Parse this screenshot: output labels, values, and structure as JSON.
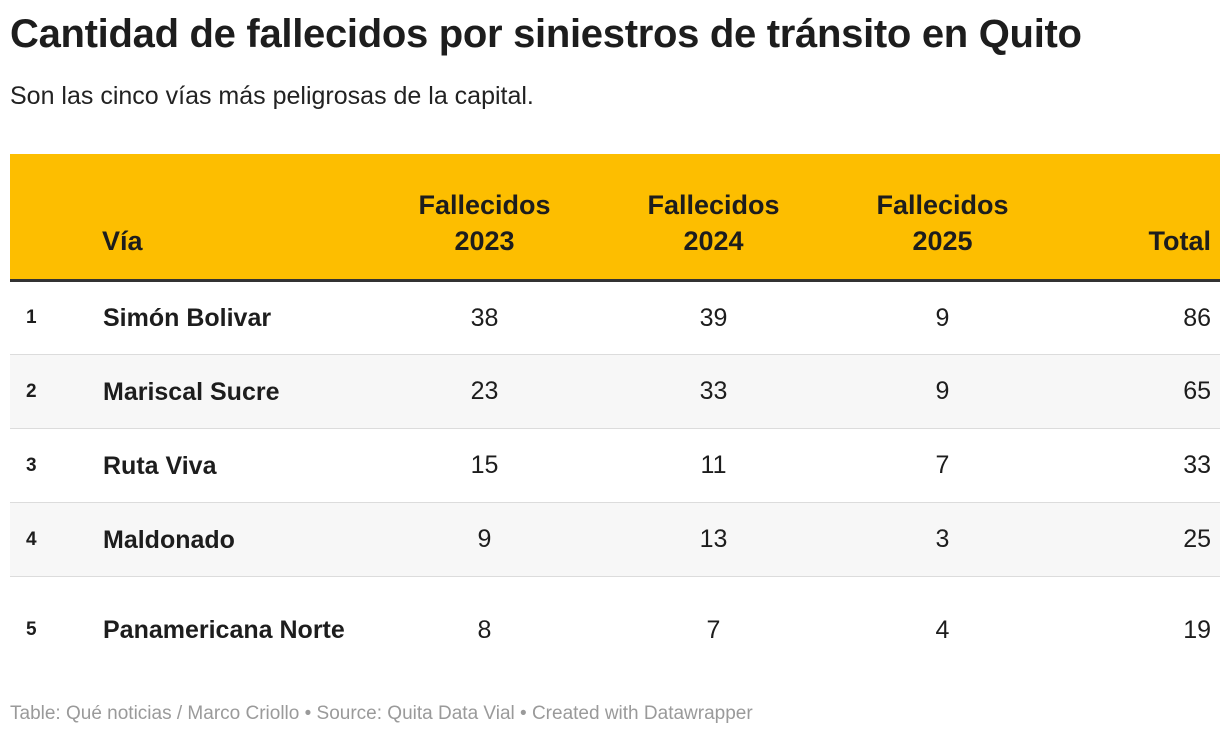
{
  "title": "Cantidad de fallecidos por siniestros de tránsito en Quito",
  "subtitle": "Son las cinco vías más peligrosas de la capital.",
  "colors": {
    "header_bg": "#fdbe00",
    "stripe": "#f7f7f7",
    "footer_text": "#9a9a9a"
  },
  "chart_data": {
    "type": "table",
    "columns": [
      "Vía",
      "Fallecidos 2023",
      "Fallecidos 2024",
      "Fallecidos 2025",
      "Total"
    ],
    "header": {
      "via": "Vía",
      "c2023": [
        "Fallecidos",
        "2023"
      ],
      "c2024": [
        "Fallecidos",
        "2024"
      ],
      "c2025": [
        "Fallecidos",
        "2025"
      ],
      "total": "Total"
    },
    "rows": [
      {
        "rank": "1",
        "via": "Simón Bolivar",
        "y2023": 38,
        "y2024": 39,
        "y2025": 9,
        "total": 86
      },
      {
        "rank": "2",
        "via": "Mariscal Sucre",
        "y2023": 23,
        "y2024": 33,
        "y2025": 9,
        "total": 65
      },
      {
        "rank": "3",
        "via": "Ruta Viva",
        "y2023": 15,
        "y2024": 11,
        "y2025": 7,
        "total": 33
      },
      {
        "rank": "4",
        "via": "Maldonado",
        "y2023": 9,
        "y2024": 13,
        "y2025": 3,
        "total": 25
      },
      {
        "rank": "5",
        "via": "Panamericana Norte",
        "y2023": 8,
        "y2024": 7,
        "y2025": 4,
        "total": 19
      }
    ]
  },
  "footer": "Table: Qué noticias / Marco Criollo • Source: Quita Data Vial • Created with Datawrapper"
}
